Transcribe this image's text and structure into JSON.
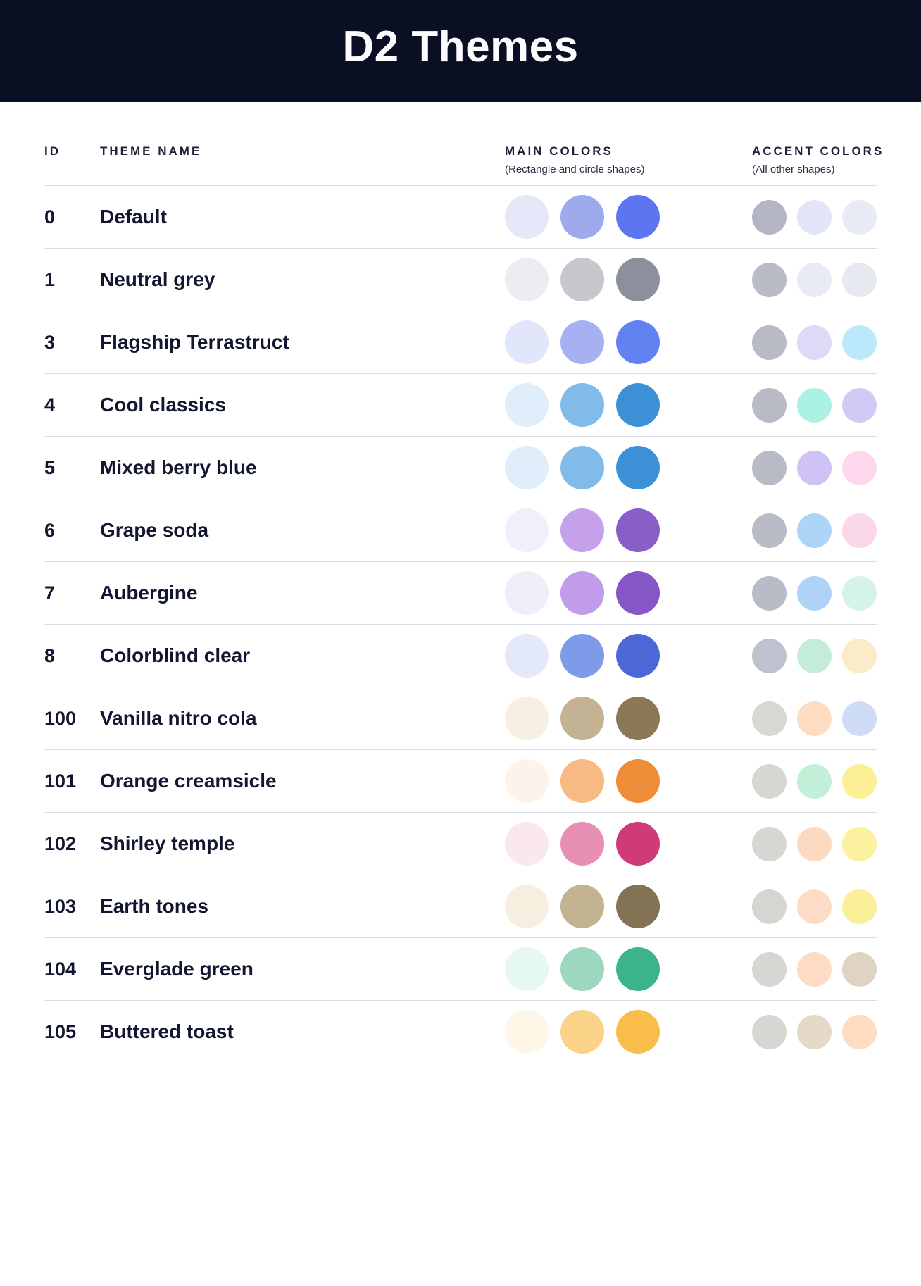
{
  "page": {
    "title": "D2 Themes"
  },
  "colors": {
    "banner_bg": "#0A0F23",
    "banner_text": "#FCFCFE",
    "heading_text": "#1D2238",
    "row_text": "#121630",
    "divider": "#D9DDE9"
  },
  "table": {
    "columns": {
      "id_label": "ID",
      "name_label": "THEME NAME",
      "main_label": "MAIN COLORS",
      "main_sub": "(Rectangle and circle shapes)",
      "accent_label": "ACCENT COLORS",
      "accent_sub": "(All other shapes)"
    },
    "rows": [
      {
        "id": "0",
        "name": "Default",
        "main": [
          "#E5E8F8",
          "#9DAAEE",
          "#5B76F0"
        ],
        "accent": [
          "#B3B5C2",
          "#E2E4F9",
          "#E7EBF4"
        ]
      },
      {
        "id": "1",
        "name": "Neutral grey",
        "main": [
          "#EBEDF2",
          "#C6C8CE",
          "#8C8F9C"
        ],
        "accent": [
          "#B9BBC6",
          "#E9EBF2",
          "#E7E9F1"
        ]
      },
      {
        "id": "3",
        "name": "Flagship Terrastruct",
        "main": [
          "#E2E6FB",
          "#A6B1F2",
          "#6282F2"
        ],
        "accent": [
          "#B8BAC5",
          "#DED9F7",
          "#BBE8FA"
        ]
      },
      {
        "id": "4",
        "name": "Cool classics",
        "main": [
          "#DFEEFA",
          "#80BBE9",
          "#3C90D5"
        ],
        "accent": [
          "#B8BAC5",
          "#ACF2E3",
          "#D2C9F6"
        ]
      },
      {
        "id": "5",
        "name": "Mixed berry blue",
        "main": [
          "#DFEEFA",
          "#80BBE9",
          "#3C90D5"
        ],
        "accent": [
          "#B8BAC5",
          "#CEC3F4",
          "#FDD8EC"
        ]
      },
      {
        "id": "6",
        "name": "Grape soda",
        "main": [
          "#F2EEFB",
          "#C5A1EA",
          "#8A5EC9"
        ],
        "accent": [
          "#B9BBC6",
          "#AED4F8",
          "#FBD7EA"
        ]
      },
      {
        "id": "7",
        "name": "Aubergine",
        "main": [
          "#F0ECFA",
          "#C09CEA",
          "#8557C6"
        ],
        "accent": [
          "#B9BBC6",
          "#AED3F7",
          "#D5F3EB"
        ]
      },
      {
        "id": "8",
        "name": "Colorblind clear",
        "main": [
          "#E3E8FA",
          "#7E9BE9",
          "#4C68D7"
        ],
        "accent": [
          "#BFC1CE",
          "#C3EDD8",
          "#FCEBC8"
        ]
      },
      {
        "id": "100",
        "name": "Vanilla nitro cola",
        "main": [
          "#F7EFE4",
          "#C3B394",
          "#8A7857"
        ],
        "accent": [
          "#D9D7D3",
          "#FDDCC2",
          "#CFDCF8"
        ]
      },
      {
        "id": "101",
        "name": "Orange creamsicle",
        "main": [
          "#FDF3EA",
          "#F8BA82",
          "#EE8C37"
        ],
        "accent": [
          "#D8D6D2",
          "#C3EED7",
          "#FBF096"
        ]
      },
      {
        "id": "102",
        "name": "Shirley temple",
        "main": [
          "#FBE8EF",
          "#E890B4",
          "#CE3B78"
        ],
        "accent": [
          "#D8D6D2",
          "#FCDAC2",
          "#FBF19E"
        ]
      },
      {
        "id": "103",
        "name": "Earth tones",
        "main": [
          "#F6EEDF",
          "#C2B291",
          "#837254"
        ],
        "accent": [
          "#D7D5D1",
          "#FDDCC5",
          "#FAF09A"
        ]
      },
      {
        "id": "104",
        "name": "Everglade green",
        "main": [
          "#E6F9F1",
          "#9CD8BE",
          "#3CB489"
        ],
        "accent": [
          "#D8D6D3",
          "#FDDCC3",
          "#DFD3C3"
        ]
      },
      {
        "id": "105",
        "name": "Buttered toast",
        "main": [
          "#FEF7E7",
          "#FBD388",
          "#F8BD4A"
        ],
        "accent": [
          "#D8D6D3",
          "#E5DAC8",
          "#FDDCC2"
        ]
      }
    ]
  }
}
